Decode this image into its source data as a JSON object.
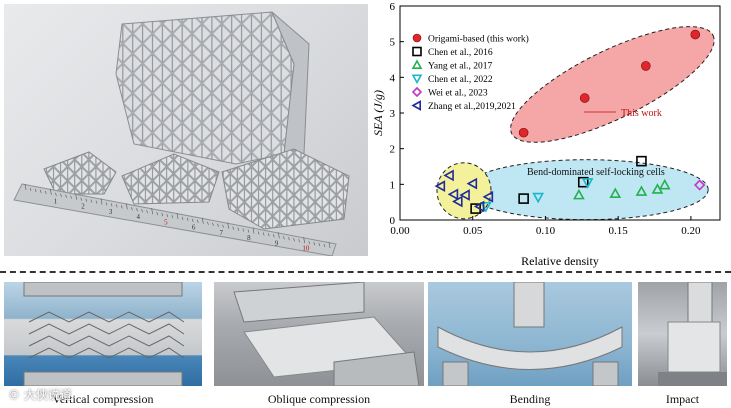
{
  "chart_data": {
    "type": "scatter",
    "xlabel": "Relative density",
    "ylabel": "SEA (J/g)",
    "xlim": [
      0.0,
      0.22
    ],
    "ylim": [
      0,
      6
    ],
    "xticks": [
      "0.00",
      "0.05",
      "0.10",
      "0.15",
      "0.20"
    ],
    "yticks": [
      "0",
      "1",
      "2",
      "3",
      "4",
      "5",
      "6"
    ],
    "legend_position": "top-left",
    "series": [
      {
        "name": "Origami-based (this work)",
        "marker": "circle-filled",
        "color": "#e0262b",
        "points": [
          [
            0.085,
            2.45
          ],
          [
            0.127,
            3.42
          ],
          [
            0.169,
            4.32
          ],
          [
            0.203,
            5.2
          ]
        ]
      },
      {
        "name": "Chen et al., 2016",
        "marker": "square",
        "color": "#000000",
        "points": [
          [
            0.085,
            0.6
          ],
          [
            0.126,
            1.06
          ],
          [
            0.166,
            1.65
          ],
          [
            0.052,
            0.32
          ]
        ]
      },
      {
        "name": "Yang et al., 2017",
        "marker": "triangle-up",
        "color": "#22b14c",
        "points": [
          [
            0.123,
            0.7
          ],
          [
            0.148,
            0.74
          ],
          [
            0.166,
            0.8
          ],
          [
            0.177,
            0.86
          ],
          [
            0.182,
            0.98
          ]
        ]
      },
      {
        "name": "Chen et al., 2022",
        "marker": "triangle-down",
        "color": "#19b8c9",
        "points": [
          [
            0.095,
            0.64
          ],
          [
            0.129,
            1.05
          ],
          [
            0.059,
            0.38
          ]
        ]
      },
      {
        "name": "Wei et al., 2023",
        "marker": "diamond",
        "color": "#c832c8",
        "points": [
          [
            0.206,
            0.98
          ]
        ]
      },
      {
        "name": "Zhang et al.,2019,2021",
        "marker": "triangle-left",
        "color": "#1f2a9e",
        "points": [
          [
            0.028,
            0.95
          ],
          [
            0.034,
            1.25
          ],
          [
            0.037,
            0.72
          ],
          [
            0.04,
            0.52
          ],
          [
            0.045,
            0.7
          ],
          [
            0.05,
            1.02
          ],
          [
            0.055,
            0.38
          ],
          [
            0.061,
            0.65
          ]
        ]
      }
    ],
    "annotations": [
      "This work",
      "Bend-dominated self-locking cells"
    ],
    "regions": [
      {
        "label": "This work",
        "color": "#f4a7a6"
      },
      {
        "label": "Bend-dominated self-locking cells",
        "color": "#bfe6f3"
      },
      {
        "label": "",
        "color": "#f3f29a"
      }
    ]
  },
  "captions": {
    "vertical": "Vertical compression",
    "oblique": "Oblique compression",
    "bending": "Bending",
    "impact": "Impact"
  },
  "watermark": "© 大侠说道",
  "ruler_numbers": [
    "1",
    "2",
    "3",
    "4",
    "5",
    "6",
    "7",
    "8",
    "9",
    "10"
  ]
}
